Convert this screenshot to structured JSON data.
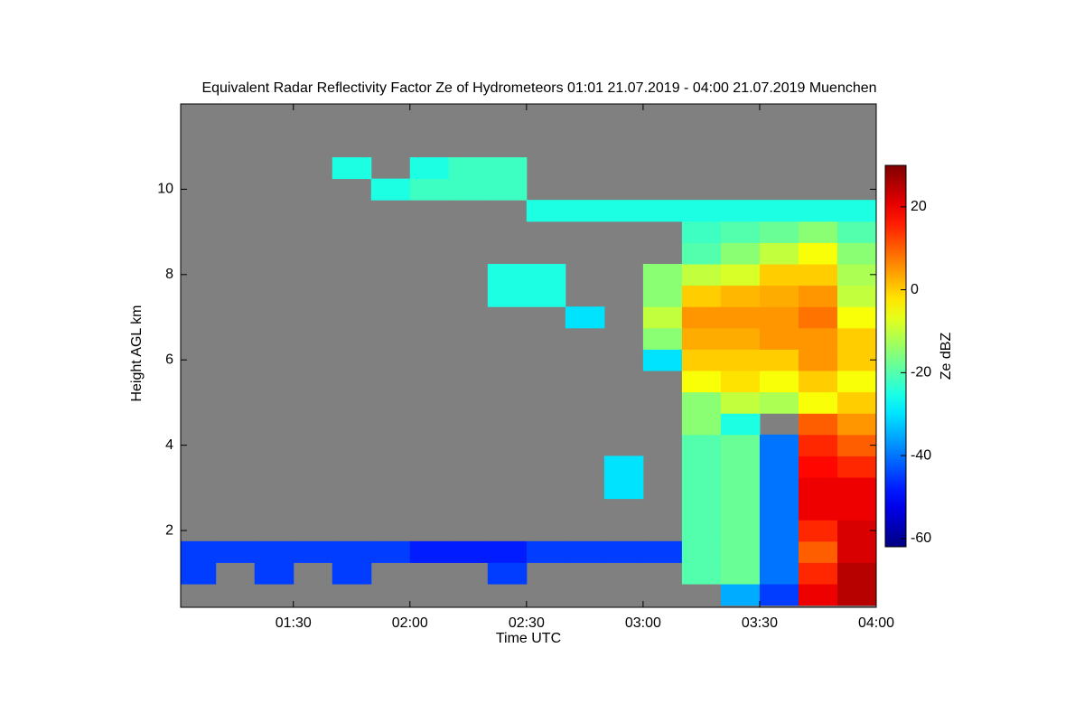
{
  "chart_data": {
    "type": "heatmap",
    "title": "Equivalent Radar Reflectivity Factor Ze of Hydrometeors   01:01 21.07.2019 - 04:00 21.07.2019 Muenchen",
    "x_label": "Time UTC",
    "y_label": "Height AGL km",
    "colorbar_label": "Ze dBZ",
    "colormap": "jet",
    "background": "#808080",
    "xlim": [
      "01:01",
      "04:00"
    ],
    "xticks": [
      "01:30",
      "02:00",
      "02:30",
      "03:00",
      "03:30",
      "04:00"
    ],
    "ylim": [
      0.2,
      12
    ],
    "yticks": [
      2,
      4,
      6,
      8,
      10
    ],
    "zlim": [
      -62,
      30
    ],
    "zticks": [
      -60,
      -40,
      -20,
      0,
      20
    ],
    "x": [
      "01:05",
      "01:15",
      "01:25",
      "01:35",
      "01:45",
      "01:55",
      "02:05",
      "02:15",
      "02:25",
      "02:35",
      "02:45",
      "02:55",
      "03:05",
      "03:15",
      "03:25",
      "03:35",
      "03:45",
      "03:55"
    ],
    "y": [
      0.5,
      1.0,
      1.5,
      2.0,
      2.5,
      3.0,
      3.5,
      4.0,
      4.5,
      5.0,
      5.5,
      6.0,
      6.5,
      7.0,
      7.5,
      8.0,
      8.5,
      9.0,
      9.5,
      10.0,
      10.5
    ],
    "z": [
      [
        null,
        null,
        null,
        null,
        null,
        null,
        null,
        null,
        null,
        null,
        null,
        null,
        null,
        null,
        -35,
        -45,
        20,
        25
      ],
      [
        -45,
        null,
        -45,
        null,
        -45,
        null,
        null,
        null,
        -45,
        null,
        null,
        null,
        null,
        -20,
        -18,
        -40,
        15,
        25
      ],
      [
        -45,
        -45,
        -45,
        -45,
        -45,
        -45,
        -48,
        -48,
        -48,
        -45,
        -45,
        -45,
        -45,
        -20,
        -18,
        -40,
        10,
        22
      ],
      [
        null,
        null,
        null,
        null,
        null,
        null,
        null,
        null,
        null,
        null,
        null,
        null,
        null,
        -20,
        -18,
        -40,
        15,
        22
      ],
      [
        null,
        null,
        null,
        null,
        null,
        null,
        null,
        null,
        null,
        null,
        null,
        null,
        null,
        -20,
        -18,
        -40,
        20,
        20
      ],
      [
        null,
        null,
        null,
        null,
        null,
        null,
        null,
        null,
        null,
        null,
        null,
        -30,
        null,
        -20,
        -18,
        -40,
        20,
        20
      ],
      [
        null,
        null,
        null,
        null,
        null,
        null,
        null,
        null,
        null,
        null,
        null,
        -30,
        null,
        -20,
        -18,
        -40,
        18,
        15
      ],
      [
        null,
        null,
        null,
        null,
        null,
        null,
        null,
        null,
        null,
        null,
        null,
        null,
        null,
        -20,
        -18,
        -40,
        15,
        10
      ],
      [
        null,
        null,
        null,
        null,
        null,
        null,
        null,
        null,
        null,
        null,
        null,
        null,
        null,
        -15,
        -25,
        null,
        10,
        5
      ],
      [
        null,
        null,
        null,
        null,
        null,
        null,
        null,
        null,
        null,
        null,
        null,
        null,
        null,
        -15,
        -10,
        -12,
        -5,
        0
      ],
      [
        null,
        null,
        null,
        null,
        null,
        null,
        null,
        null,
        null,
        null,
        null,
        null,
        null,
        -5,
        -2,
        -5,
        0,
        -5
      ],
      [
        null,
        null,
        null,
        null,
        null,
        null,
        null,
        null,
        null,
        null,
        null,
        null,
        -30,
        0,
        0,
        0,
        5,
        0
      ],
      [
        null,
        null,
        null,
        null,
        null,
        null,
        null,
        null,
        null,
        null,
        null,
        null,
        -15,
        3,
        3,
        5,
        5,
        0
      ],
      [
        null,
        null,
        null,
        null,
        null,
        null,
        null,
        null,
        null,
        null,
        -30,
        null,
        -10,
        5,
        5,
        5,
        8,
        -5
      ],
      [
        null,
        null,
        null,
        null,
        null,
        null,
        null,
        null,
        -25,
        -25,
        null,
        null,
        -15,
        0,
        2,
        3,
        5,
        -10
      ],
      [
        null,
        null,
        null,
        null,
        null,
        null,
        null,
        null,
        -25,
        -25,
        null,
        null,
        -15,
        -10,
        -8,
        0,
        0,
        -12
      ],
      [
        null,
        null,
        null,
        null,
        null,
        null,
        null,
        null,
        null,
        null,
        null,
        null,
        null,
        -20,
        -15,
        -10,
        -5,
        -15
      ],
      [
        null,
        null,
        null,
        null,
        null,
        null,
        null,
        null,
        null,
        null,
        null,
        null,
        null,
        -22,
        -20,
        -18,
        -15,
        -20
      ],
      [
        null,
        null,
        null,
        null,
        null,
        null,
        null,
        null,
        null,
        -25,
        -25,
        -25,
        -25,
        -25,
        -25,
        -25,
        -25,
        -25
      ],
      [
        null,
        null,
        null,
        null,
        null,
        -25,
        -22,
        -22,
        -22,
        null,
        null,
        null,
        null,
        null,
        null,
        null,
        null,
        null
      ],
      [
        null,
        null,
        null,
        null,
        -25,
        null,
        -25,
        -22,
        -22,
        null,
        null,
        null,
        null,
        null,
        null,
        null,
        null,
        null
      ]
    ]
  }
}
